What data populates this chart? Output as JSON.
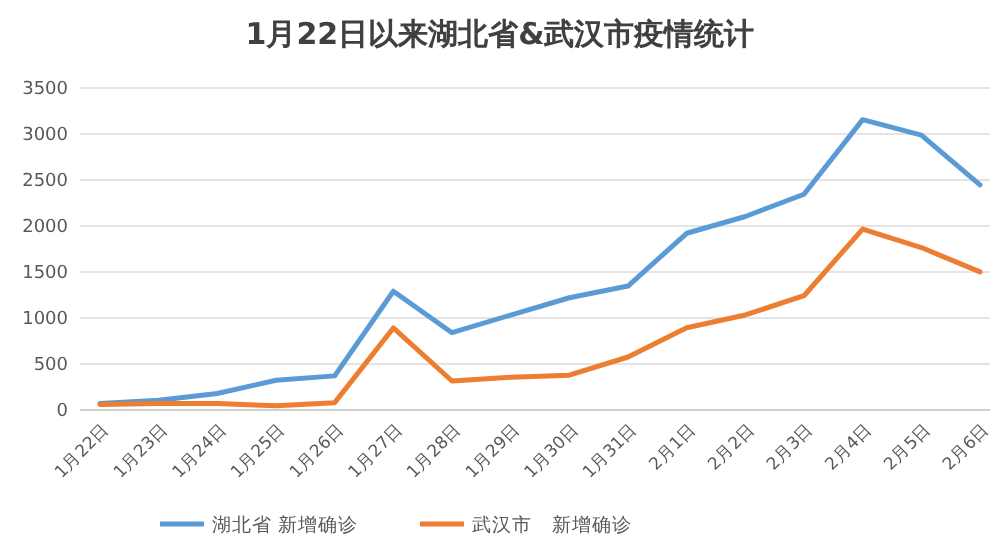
{
  "chart_data": {
    "type": "line",
    "title": "1月22日以来湖北省&武汉市疫情统计",
    "categories": [
      "1月22日",
      "1月23日",
      "1月24日",
      "1月25日",
      "1月26日",
      "1月27日",
      "1月28日",
      "1月29日",
      "1月30日",
      "1月31日",
      "2月1日",
      "2月2日",
      "2月3日",
      "2月4日",
      "2月5日",
      "2月6日"
    ],
    "series": [
      {
        "name": "湖北省 新增确诊",
        "color": "#5b9bd5",
        "values": [
          70,
          105,
          180,
          323,
          371,
          1291,
          840,
          1032,
          1220,
          1347,
          1921,
          2103,
          2345,
          3156,
          2987,
          2447
        ]
      },
      {
        "name": "武汉市　新增确诊",
        "color": "#ed7d31",
        "values": [
          60,
          70,
          70,
          46,
          80,
          892,
          315,
          356,
          378,
          576,
          894,
          1033,
          1242,
          1967,
          1766,
          1501
        ]
      }
    ],
    "ylim": [
      0,
      3500
    ],
    "yticks": [
      0,
      500,
      1000,
      1500,
      2000,
      2500,
      3000,
      3500
    ],
    "grid": "y",
    "legend": "bottom",
    "marker": "none",
    "line_style": "solid"
  }
}
